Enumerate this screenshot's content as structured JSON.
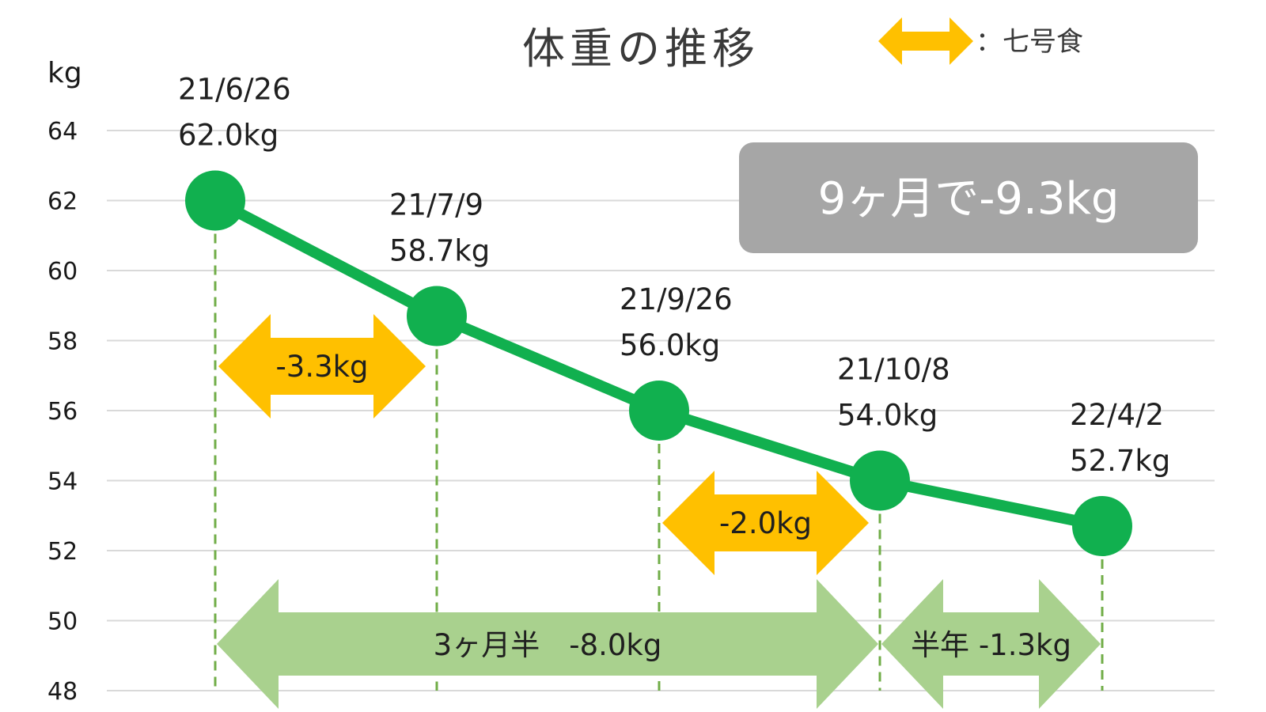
{
  "chart_data": {
    "type": "line",
    "title": "体重の推移",
    "ylabel": "kg",
    "ylim": [
      48,
      64
    ],
    "yticks": [
      64,
      62,
      60,
      58,
      56,
      54,
      52,
      50,
      48
    ],
    "grid": true,
    "colors": {
      "line": "#11b04f",
      "marker": "#11b04f",
      "diet_arrow": "#ffc000",
      "period_arrow": "#a9d18e",
      "guide": "#70ad47",
      "grid": "#d9d9d9",
      "summary_box": "#a6a6a6"
    },
    "series": [
      {
        "values": [
          {
            "date": "21/6/26",
            "weight": 62.0,
            "label": "62.0kg"
          },
          {
            "date": "21/7/9",
            "weight": 58.7,
            "label": "58.7kg"
          },
          {
            "date": "21/9/26",
            "weight": 56.0,
            "label": "56.0kg"
          },
          {
            "date": "21/10/8",
            "weight": 54.0,
            "label": "54.0kg"
          },
          {
            "date": "22/4/2",
            "weight": 52.7,
            "label": "52.7kg"
          }
        ]
      }
    ],
    "legend": {
      "symbol": "double-arrow",
      "text": "：七号食",
      "placement": "top-right"
    },
    "diet_periods": [
      {
        "from": "21/6/26",
        "to": "21/7/9",
        "label": "-3.3kg"
      },
      {
        "from": "21/9/26",
        "to": "21/10/8",
        "label": "-2.0kg"
      }
    ],
    "period_arrows": [
      {
        "from": "21/6/26",
        "to": "21/10/8",
        "label": "3ヶ月半　-8.0kg"
      },
      {
        "from": "21/10/8",
        "to": "22/4/2",
        "label": "半年 -1.3kg"
      }
    ],
    "summary": "9ヶ月で-9.3kg"
  }
}
